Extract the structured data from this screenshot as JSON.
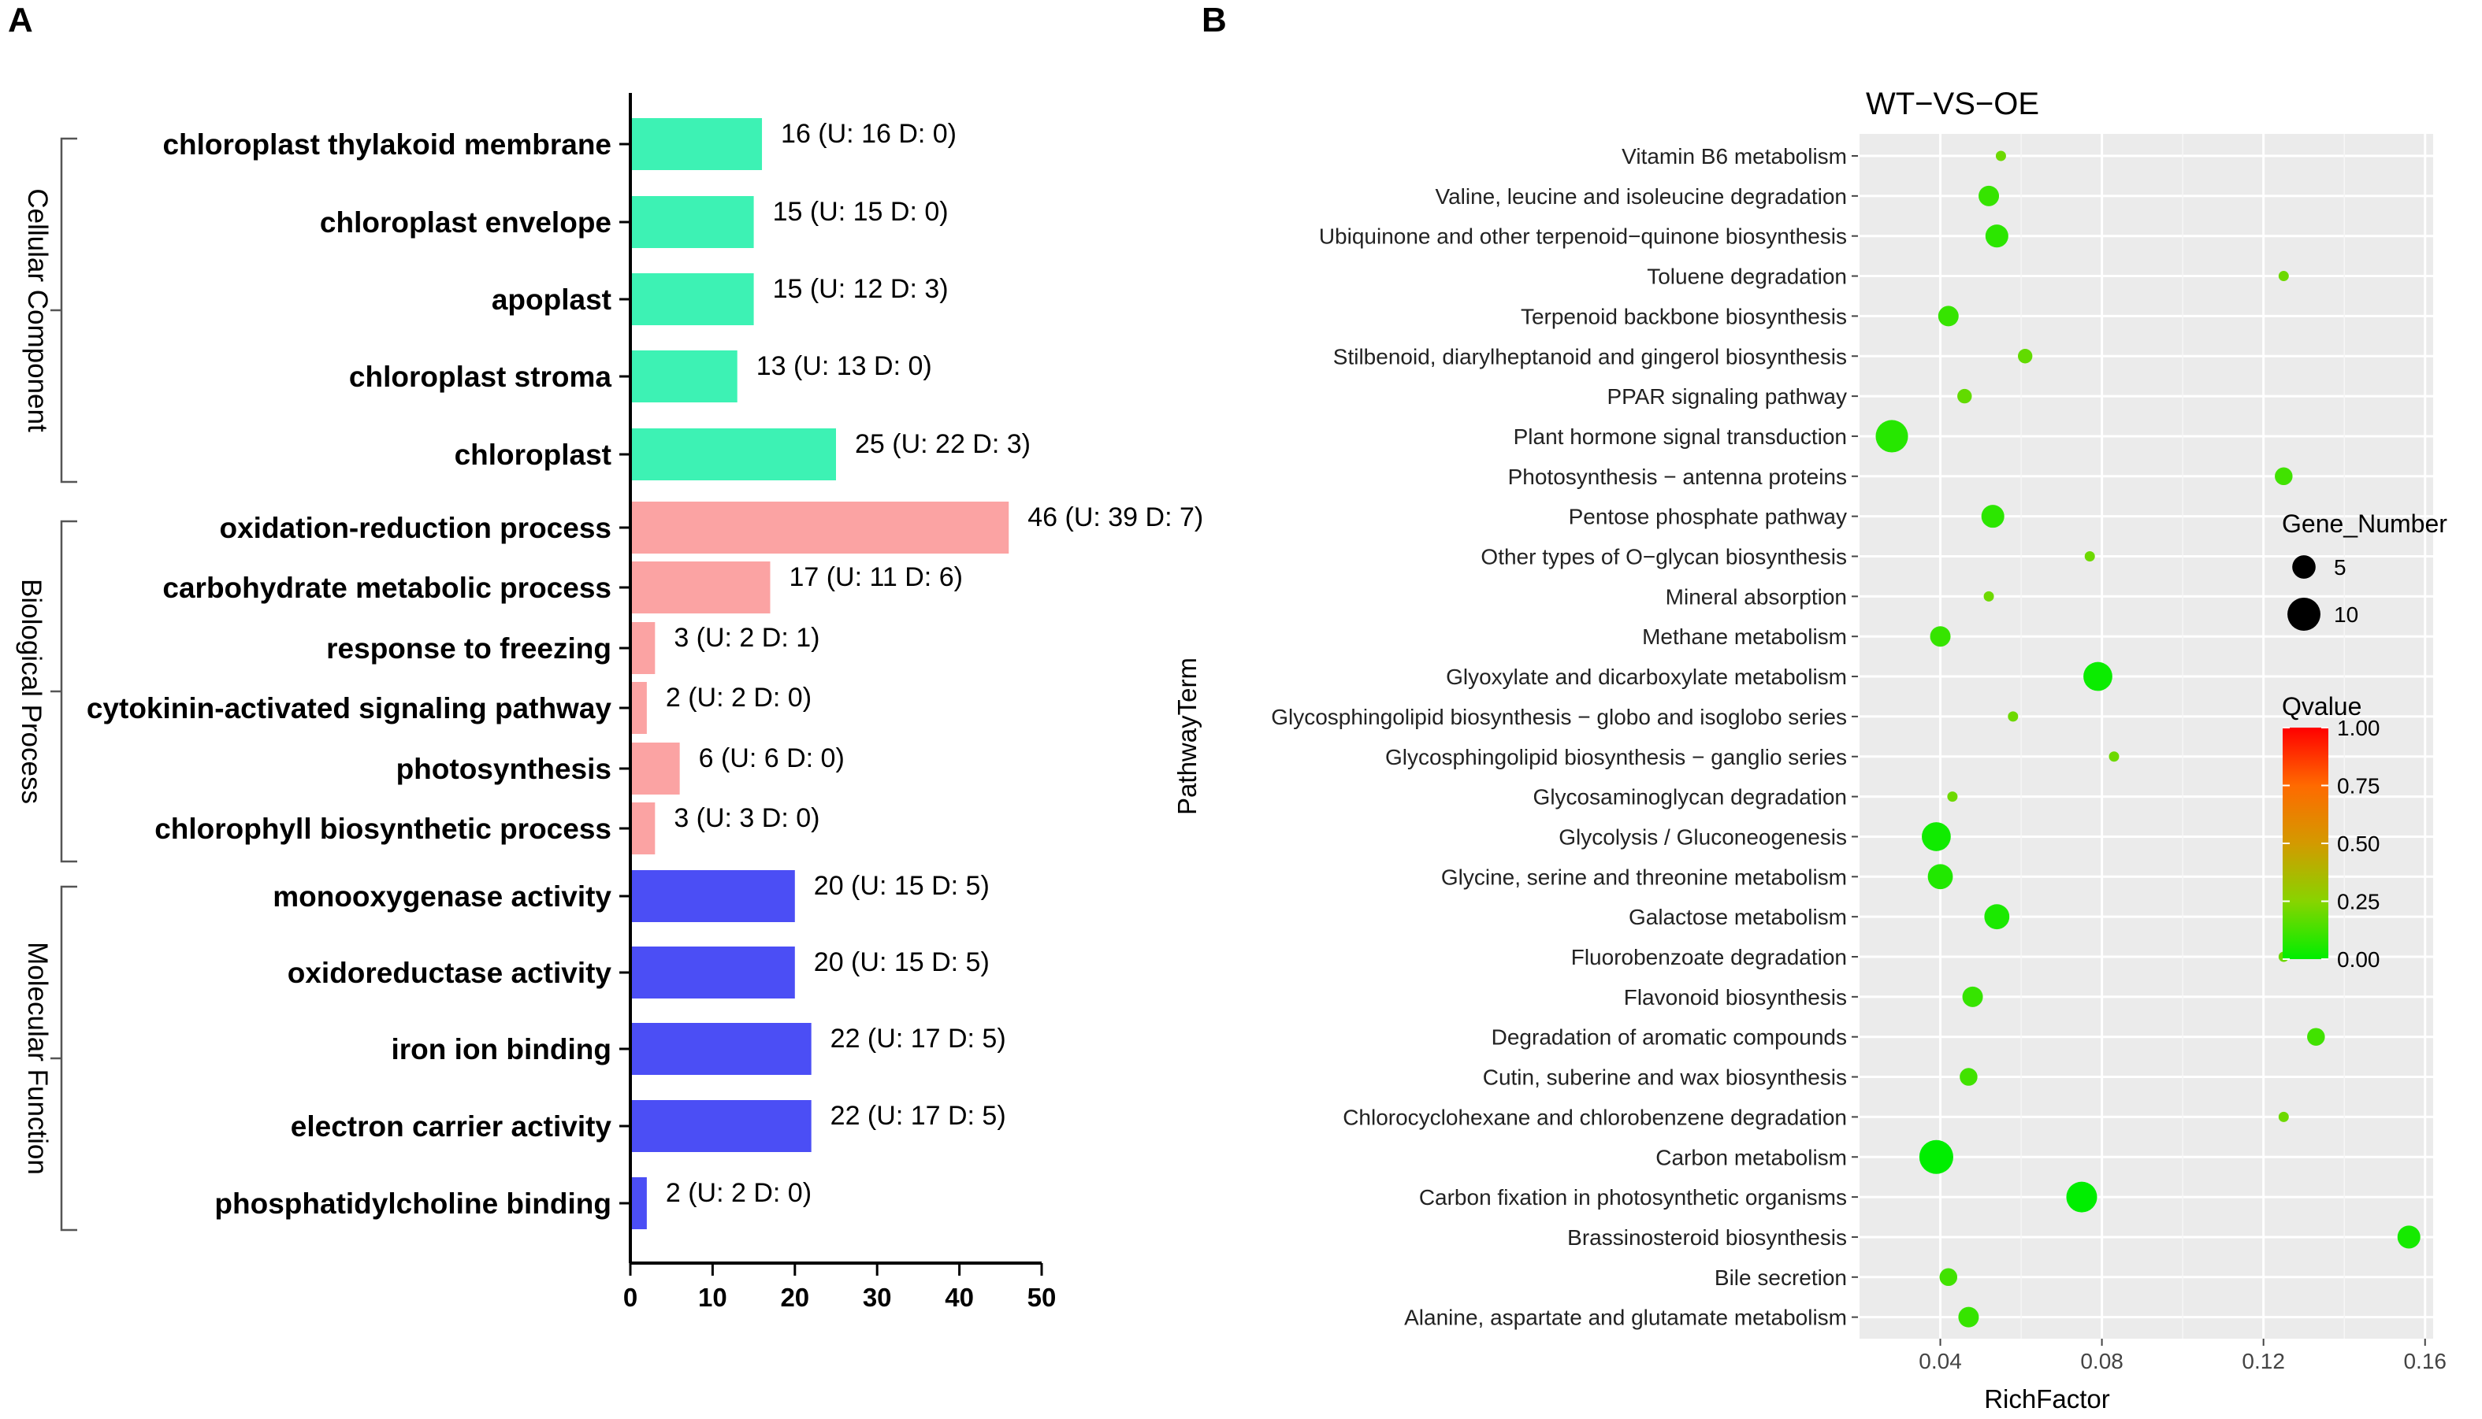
{
  "panels": {
    "a_letter": "A",
    "b_letter": "B"
  },
  "chart_data": [
    {
      "type": "bar",
      "orientation": "horizontal",
      "title": "",
      "xlim": [
        0,
        50
      ],
      "xticks": [
        "0",
        "10",
        "20",
        "30",
        "40",
        "50"
      ],
      "groups": [
        {
          "name": "Cellular Component",
          "color": "#3df2b4"
        },
        {
          "name": "Biological Process",
          "color": "#fba3a3"
        },
        {
          "name": "Molecular Function",
          "color": "#4b4ef5"
        }
      ],
      "bars": [
        {
          "label": "chloroplast thylakoid membrane",
          "value": 16,
          "text": "16 (U: 16 D: 0)",
          "group": 0
        },
        {
          "label": "chloroplast envelope",
          "value": 15,
          "text": "15 (U: 15 D: 0)",
          "group": 0
        },
        {
          "label": "apoplast",
          "value": 15,
          "text": "15 (U: 12 D: 3)",
          "group": 0
        },
        {
          "label": "chloroplast stroma",
          "value": 13,
          "text": "13 (U: 13 D: 0)",
          "group": 0
        },
        {
          "label": "chloroplast",
          "value": 25,
          "text": "25 (U: 22 D: 3)",
          "group": 0
        },
        {
          "label": "oxidation-reduction process",
          "value": 46,
          "text": "46 (U: 39 D: 7)",
          "group": 1
        },
        {
          "label": "carbohydrate metabolic process",
          "value": 17,
          "text": "17 (U: 11 D: 6)",
          "group": 1
        },
        {
          "label": "response to freezing",
          "value": 3,
          "text": "3 (U: 2 D: 1)",
          "group": 1
        },
        {
          "label": "cytokinin-activated signaling pathway",
          "value": 2,
          "text": "2 (U: 2 D: 0)",
          "group": 1
        },
        {
          "label": "photosynthesis",
          "value": 6,
          "text": "6 (U: 6 D: 0)",
          "group": 1
        },
        {
          "label": "chlorophyll biosynthetic process",
          "value": 3,
          "text": "3 (U: 3 D: 0)",
          "group": 1
        },
        {
          "label": "monooxygenase activity",
          "value": 20,
          "text": "20 (U: 15 D: 5)",
          "group": 2
        },
        {
          "label": "oxidoreductase activity",
          "value": 20,
          "text": "20 (U: 15 D: 5)",
          "group": 2
        },
        {
          "label": "iron ion binding",
          "value": 22,
          "text": "22 (U: 17 D: 5)",
          "group": 2
        },
        {
          "label": "electron carrier activity",
          "value": 22,
          "text": "22 (U: 17 D: 5)",
          "group": 2
        },
        {
          "label": "phosphatidylcholine binding",
          "value": 2,
          "text": "2 (U: 2 D: 0)",
          "group": 2
        }
      ]
    },
    {
      "type": "scatter",
      "title": "WT−VS−OE",
      "xlabel": "RichFactor",
      "ylabel": "PathwayTerm",
      "xlim": [
        0.02,
        0.162
      ],
      "xticks": [
        {
          "value": 0.04,
          "label": "0.04"
        },
        {
          "value": 0.08,
          "label": "0.08"
        },
        {
          "value": 0.12,
          "label": "0.12"
        },
        {
          "value": 0.16,
          "label": "0.16"
        }
      ],
      "legend_size": {
        "title": "Gene_Number",
        "items": [
          {
            "value": 5,
            "label": "5"
          },
          {
            "value": 10,
            "label": "10"
          }
        ]
      },
      "legend_color": {
        "title": "Qvalue",
        "ticks": [
          "1.00",
          "0.75",
          "0.50",
          "0.25",
          "0.00"
        ],
        "colors": [
          "#ff0000",
          "#ff6a00",
          "#d39a00",
          "#88d400",
          "#00ee00"
        ]
      },
      "points": [
        {
          "pathway": "Vitamin B6 metabolism",
          "rich": 0.055,
          "genes": 1,
          "qvalue": 0.2
        },
        {
          "pathway": "Valine, leucine and isoleucine degradation",
          "rich": 0.052,
          "genes": 4,
          "qvalue": 0.1
        },
        {
          "pathway": "Ubiquinone and other terpenoid−quinone biosynthesis",
          "rich": 0.054,
          "genes": 5,
          "qvalue": 0.08
        },
        {
          "pathway": "Toluene degradation",
          "rich": 0.125,
          "genes": 1,
          "qvalue": 0.2
        },
        {
          "pathway": "Terpenoid backbone biosynthesis",
          "rich": 0.042,
          "genes": 4,
          "qvalue": 0.1
        },
        {
          "pathway": "Stilbenoid, diarylheptanoid and gingerol biosynthesis",
          "rich": 0.061,
          "genes": 2,
          "qvalue": 0.18
        },
        {
          "pathway": "PPAR signaling pathway",
          "rich": 0.046,
          "genes": 2,
          "qvalue": 0.18
        },
        {
          "pathway": "Plant hormone signal transduction",
          "rich": 0.028,
          "genes": 10,
          "qvalue": 0.07
        },
        {
          "pathway": "Photosynthesis − antenna proteins",
          "rich": 0.125,
          "genes": 3,
          "qvalue": 0.12
        },
        {
          "pathway": "Pentose phosphate pathway",
          "rich": 0.053,
          "genes": 5,
          "qvalue": 0.08
        },
        {
          "pathway": "Other types of O−glycan biosynthesis",
          "rich": 0.077,
          "genes": 1,
          "qvalue": 0.2
        },
        {
          "pathway": "Mineral absorption",
          "rich": 0.052,
          "genes": 1,
          "qvalue": 0.2
        },
        {
          "pathway": "Methane metabolism",
          "rich": 0.04,
          "genes": 4,
          "qvalue": 0.1
        },
        {
          "pathway": "Glyoxylate and dicarboxylate metabolism",
          "rich": 0.079,
          "genes": 8,
          "qvalue": 0.02
        },
        {
          "pathway": "Glycosphingolipid biosynthesis − globo and isoglobo series",
          "rich": 0.058,
          "genes": 1,
          "qvalue": 0.2
        },
        {
          "pathway": "Glycosphingolipid biosynthesis − ganglio series",
          "rich": 0.083,
          "genes": 1,
          "qvalue": 0.2
        },
        {
          "pathway": "Glycosaminoglycan degradation",
          "rich": 0.043,
          "genes": 1,
          "qvalue": 0.2
        },
        {
          "pathway": "Glycolysis / Gluconeogenesis",
          "rich": 0.039,
          "genes": 8,
          "qvalue": 0.03
        },
        {
          "pathway": "Glycine, serine and threonine metabolism",
          "rich": 0.04,
          "genes": 6,
          "qvalue": 0.06
        },
        {
          "pathway": "Galactose metabolism",
          "rich": 0.054,
          "genes": 6,
          "qvalue": 0.05
        },
        {
          "pathway": "Fluorobenzoate degradation",
          "rich": 0.125,
          "genes": 1,
          "qvalue": 0.2
        },
        {
          "pathway": "Flavonoid biosynthesis",
          "rich": 0.048,
          "genes": 4,
          "qvalue": 0.1
        },
        {
          "pathway": "Degradation of aromatic compounds",
          "rich": 0.133,
          "genes": 3,
          "qvalue": 0.12
        },
        {
          "pathway": "Cutin, suberine and wax biosynthesis",
          "rich": 0.047,
          "genes": 3,
          "qvalue": 0.12
        },
        {
          "pathway": "Chlorocyclohexane and chlorobenzene degradation",
          "rich": 0.125,
          "genes": 1,
          "qvalue": 0.2
        },
        {
          "pathway": "Carbon metabolism",
          "rich": 0.039,
          "genes": 11,
          "qvalue": 0.0
        },
        {
          "pathway": "Carbon fixation in photosynthetic organisms",
          "rich": 0.075,
          "genes": 9,
          "qvalue": 0.0
        },
        {
          "pathway": "Brassinosteroid biosynthesis",
          "rich": 0.156,
          "genes": 5,
          "qvalue": 0.04
        },
        {
          "pathway": "Bile secretion",
          "rich": 0.042,
          "genes": 3,
          "qvalue": 0.12
        },
        {
          "pathway": "Alanine, aspartate and glutamate metabolism",
          "rich": 0.047,
          "genes": 4,
          "qvalue": 0.1
        }
      ]
    }
  ]
}
